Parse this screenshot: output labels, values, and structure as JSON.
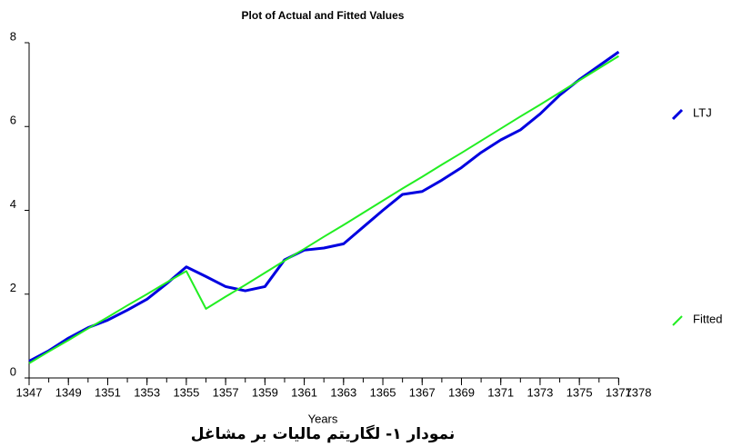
{
  "chart_data": {
    "type": "line",
    "title": "Plot of Actual and Fitted Values",
    "xlabel": "Years",
    "caption": "نمودار ۱- لگاریتم مالیات بر مشاغل",
    "x": [
      1347,
      1348,
      1349,
      1350,
      1351,
      1352,
      1353,
      1354,
      1355,
      1356,
      1357,
      1358,
      1359,
      1360,
      1361,
      1362,
      1363,
      1364,
      1365,
      1366,
      1367,
      1368,
      1369,
      1370,
      1371,
      1372,
      1373,
      1374,
      1375,
      1376,
      1377
    ],
    "series": [
      {
        "name": "LTJ",
        "color": "#0000e0",
        "values": [
          0.4,
          0.65,
          0.95,
          1.2,
          1.38,
          1.62,
          1.88,
          2.25,
          2.65,
          2.42,
          2.18,
          2.08,
          2.18,
          2.82,
          3.05,
          3.1,
          3.2,
          3.6,
          4.0,
          4.38,
          4.45,
          4.72,
          5.02,
          5.38,
          5.68,
          5.92,
          6.3,
          6.75,
          7.12,
          7.45,
          7.78
        ]
      },
      {
        "name": "Fitted",
        "color": "#22ee22",
        "values": [
          0.35,
          0.63,
          0.9,
          1.18,
          1.45,
          1.73,
          2.0,
          2.28,
          2.55,
          1.65,
          1.94,
          2.22,
          2.51,
          2.8,
          3.08,
          3.37,
          3.65,
          3.94,
          4.23,
          4.52,
          4.8,
          5.09,
          5.37,
          5.66,
          5.95,
          6.24,
          6.52,
          6.81,
          7.1,
          7.39,
          7.68
        ]
      }
    ],
    "xlim": [
      1347,
      1378
    ],
    "xticks": [
      1347,
      1349,
      1351,
      1353,
      1355,
      1357,
      1359,
      1361,
      1363,
      1365,
      1367,
      1369,
      1371,
      1373,
      1375,
      1377,
      1378
    ],
    "ylim": [
      0,
      8
    ],
    "yticks": [
      0,
      2,
      4,
      6,
      8
    ],
    "grid": false,
    "legend": "right"
  }
}
